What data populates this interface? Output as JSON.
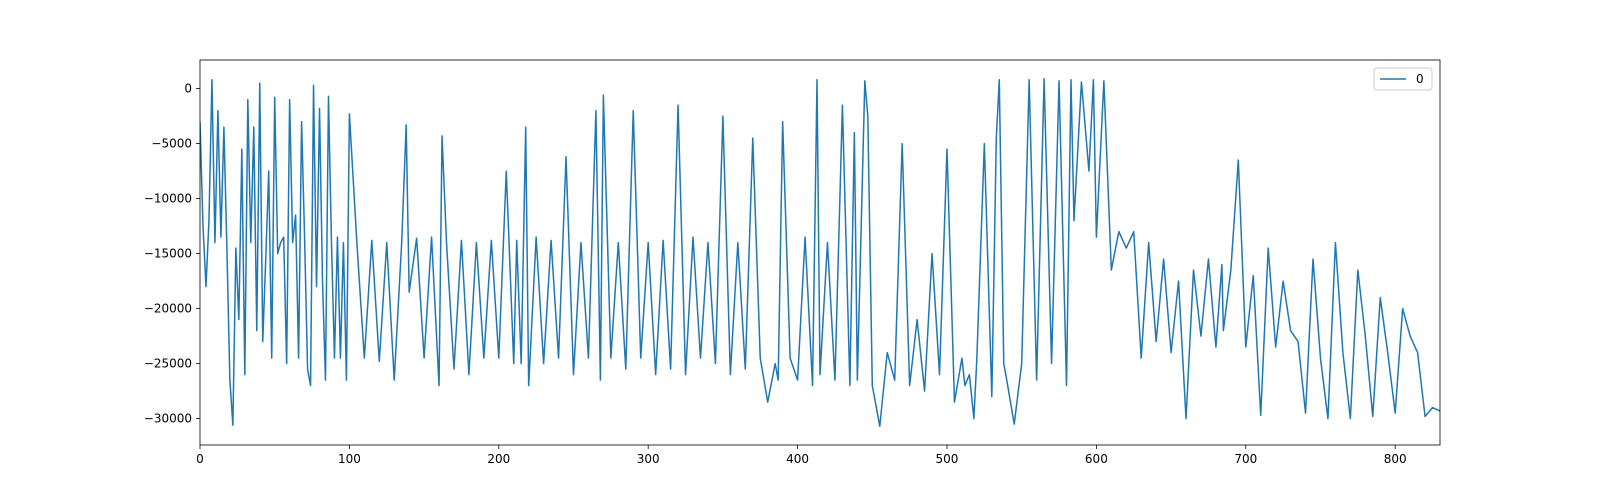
{
  "chart_data": {
    "type": "line",
    "title": "",
    "xlabel": "",
    "ylabel": "",
    "xlim": [
      0,
      830
    ],
    "ylim": [
      -32400,
      2600
    ],
    "xticks": [
      0,
      100,
      200,
      300,
      400,
      500,
      600,
      700,
      800
    ],
    "yticks": [
      0,
      -5000,
      -10000,
      -15000,
      -20000,
      -25000,
      -30000
    ],
    "xtick_labels": [
      "0",
      "100",
      "200",
      "300",
      "400",
      "500",
      "600",
      "700",
      "800"
    ],
    "ytick_labels": [
      "0",
      "−5000",
      "−10000",
      "−15000",
      "−20000",
      "−25000",
      "−30000"
    ],
    "grid": false,
    "legend": {
      "position": "top-right",
      "entries": [
        "0"
      ]
    },
    "series": [
      {
        "name": "0",
        "color": "#1f77b4",
        "x": [
          0,
          2,
          4,
          6,
          8,
          10,
          12,
          14,
          16,
          18,
          20,
          22,
          24,
          26,
          28,
          30,
          32,
          34,
          36,
          38,
          40,
          42,
          44,
          46,
          48,
          50,
          52,
          54,
          56,
          58,
          60,
          62,
          64,
          66,
          68,
          70,
          72,
          74,
          76,
          78,
          80,
          82,
          84,
          86,
          88,
          90,
          92,
          94,
          96,
          98,
          100,
          105,
          110,
          115,
          120,
          125,
          130,
          135,
          138,
          140,
          145,
          150,
          155,
          160,
          162,
          165,
          170,
          175,
          180,
          185,
          190,
          195,
          200,
          205,
          210,
          212,
          215,
          218,
          220,
          225,
          230,
          235,
          240,
          245,
          250,
          255,
          260,
          265,
          268,
          270,
          275,
          280,
          285,
          290,
          295,
          300,
          305,
          310,
          315,
          320,
          325,
          330,
          335,
          340,
          345,
          350,
          355,
          360,
          365,
          370,
          375,
          380,
          385,
          387,
          390,
          395,
          400,
          405,
          410,
          413,
          415,
          420,
          425,
          430,
          435,
          438,
          440,
          445,
          447,
          450,
          455,
          460,
          465,
          470,
          475,
          480,
          485,
          490,
          495,
          500,
          505,
          510,
          512,
          515,
          518,
          520,
          525,
          530,
          533,
          535,
          538,
          540,
          545,
          550,
          555,
          560,
          565,
          570,
          575,
          580,
          583,
          585,
          590,
          595,
          598,
          600,
          605,
          610,
          615,
          620,
          625,
          630,
          635,
          640,
          645,
          650,
          655,
          660,
          665,
          670,
          675,
          680,
          684,
          685,
          690,
          695,
          700,
          705,
          710,
          715,
          720,
          725,
          730,
          735,
          740,
          745,
          750,
          755,
          760,
          765,
          770,
          775,
          780,
          785,
          790,
          795,
          800,
          805,
          810,
          815,
          820,
          825,
          830
        ],
        "y": [
          -3000,
          -12500,
          -18000,
          -12000,
          800,
          -14000,
          -2000,
          -13500,
          -3500,
          -14500,
          -26500,
          -30600,
          -14500,
          -21000,
          -5500,
          -26000,
          -1000,
          -14000,
          -3500,
          -22000,
          500,
          -23000,
          -15500,
          -7500,
          -24500,
          -800,
          -15000,
          -14000,
          -13500,
          -25000,
          -1000,
          -14000,
          -11500,
          -24500,
          -3000,
          -13500,
          -25500,
          -27000,
          300,
          -18000,
          -1800,
          -17500,
          -26500,
          -700,
          -14000,
          -24500,
          -13500,
          -24500,
          -14000,
          -26500,
          -2300,
          -14000,
          -24500,
          -13800,
          -24800,
          -14000,
          -26500,
          -14000,
          -3300,
          -18500,
          -13600,
          -24500,
          -13500,
          -27000,
          -4300,
          -14000,
          -25500,
          -13800,
          -26000,
          -14000,
          -24500,
          -13800,
          -24500,
          -7500,
          -25000,
          -13800,
          -25000,
          -3500,
          -27000,
          -13500,
          -25000,
          -13800,
          -24500,
          -6200,
          -26000,
          -14000,
          -24500,
          -2000,
          -26500,
          -600,
          -24500,
          -14000,
          -25500,
          -2000,
          -24500,
          -14000,
          -26000,
          -13800,
          -25500,
          -1500,
          -26000,
          -13500,
          -24500,
          -14000,
          -25000,
          -2500,
          -26000,
          -14000,
          -25500,
          -4500,
          -24500,
          -28500,
          -25000,
          -26500,
          -3000,
          -24500,
          -26500,
          -13500,
          -27000,
          800,
          -26000,
          -14000,
          -26500,
          -1500,
          -27000,
          -4000,
          -26500,
          700,
          -2500,
          -27000,
          -30700,
          -24000,
          -26500,
          -5000,
          -27000,
          -21000,
          -27500,
          -15000,
          -26000,
          -5500,
          -28500,
          -24500,
          -27000,
          -26000,
          -30000,
          -24500,
          -5000,
          -28000,
          -4500,
          800,
          -25000,
          -26500,
          -30500,
          -25000,
          800,
          -26500,
          900,
          -25000,
          700,
          -27000,
          800,
          -12000,
          600,
          -7500,
          800,
          -13500,
          700,
          -16500,
          -13000,
          -14500,
          -13000,
          -24500,
          -14000,
          -23000,
          -15500,
          -24000,
          -17500,
          -30000,
          -16500,
          -22500,
          -15500,
          -23500,
          -16000,
          -22000,
          -16500,
          -6500,
          -23500,
          -17000,
          -29700,
          -14500,
          -23500,
          -17500,
          -22000,
          -23000,
          -29500,
          -15500,
          -24500,
          -30000,
          -14000,
          -24000,
          -30000,
          -16500,
          -22500,
          -29800,
          -19000,
          -24000,
          -29500,
          -20000,
          -22500,
          -24000,
          -29800,
          -29000,
          -29300
        ]
      }
    ]
  }
}
